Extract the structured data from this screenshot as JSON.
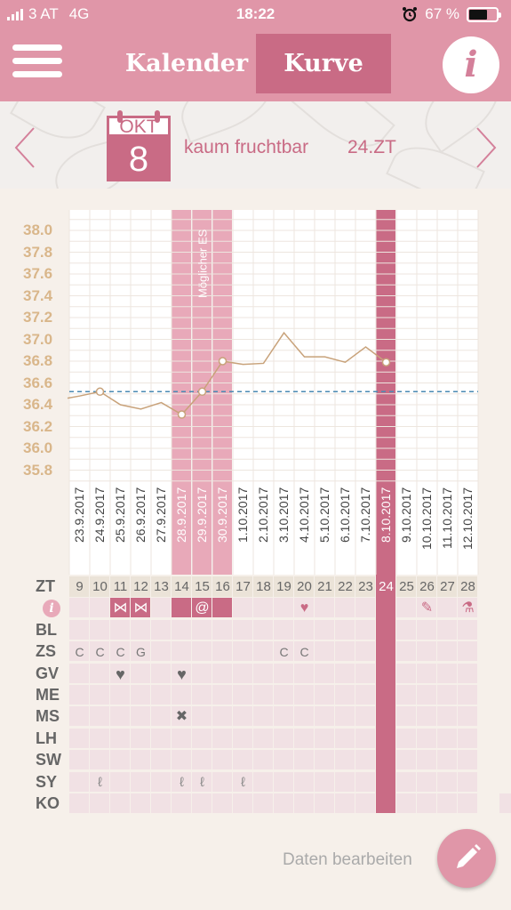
{
  "status": {
    "carrier": "3 AT",
    "network": "4G",
    "time": "18:22",
    "battery": "67 %",
    "battery_level": 0.67
  },
  "header": {
    "tabs": [
      {
        "label": "Kalender",
        "active": false
      },
      {
        "label": "Kurve",
        "active": true
      }
    ],
    "info_icon": "i"
  },
  "datebar": {
    "month": "OKT",
    "day": "8",
    "fertility": "kaum fruchtbar",
    "cycle_day": "24.ZT"
  },
  "chart_data": {
    "type": "line",
    "ylim": [
      35.7,
      38.1
    ],
    "y_ticks": [
      "38.0",
      "37.8",
      "37.6",
      "37.4",
      "37.2",
      "37.0",
      "36.8",
      "36.6",
      "36.4",
      "36.2",
      "36.0",
      "35.8"
    ],
    "coverline": 36.52,
    "annotation": "Möglicher ES",
    "x": [
      "23.9.2017",
      "24.9.2017",
      "25.9.2017",
      "26.9.2017",
      "27.9.2017",
      "28.9.2017",
      "29.9.2017",
      "30.9.2017",
      "1.10.2017",
      "2.10.2017",
      "3.10.2017",
      "4.10.2017",
      "5.10.2017",
      "6.10.2017",
      "7.10.2017",
      "8.10.2017",
      "9.10.2017",
      "10.10.2017",
      "11.10.2017",
      "12.10.2017"
    ],
    "series": [
      {
        "values": [
          36.48,
          36.52,
          36.4,
          36.36,
          36.42,
          36.31,
          36.52,
          36.8,
          36.77,
          36.78,
          37.06,
          36.84,
          36.84,
          36.79,
          36.93,
          36.79,
          null,
          null,
          null,
          null
        ]
      }
    ]
  },
  "grid": {
    "row_labels": [
      "ZT",
      "i",
      "BL",
      "ZS",
      "GV",
      "ME",
      "MS",
      "LH",
      "SW",
      "SY",
      "KO"
    ],
    "cycle_days": [
      "9",
      "10",
      "11",
      "12",
      "13",
      "14",
      "15",
      "16",
      "17",
      "18",
      "19",
      "20",
      "21",
      "22",
      "23",
      "24",
      "25",
      "26",
      "27",
      "28"
    ],
    "zs_marks": [
      "C",
      "C",
      "C",
      "G",
      "",
      "",
      "",
      "",
      "",
      "",
      "C",
      "C",
      "",
      "",
      "",
      "",
      "",
      "",
      "",
      ""
    ],
    "icons": {
      "i": [
        "",
        "",
        "bow-icon",
        "bow-icon",
        "",
        "filled",
        "swirl-icon",
        "filled",
        "",
        "",
        "",
        "bird-icon",
        "",
        "",
        "",
        "",
        "",
        "syringe-icon",
        "",
        "flask-icon"
      ],
      "gv": [
        "",
        "",
        "heart-icon",
        "",
        "",
        "heart-icon",
        "",
        "",
        "",
        "",
        "",
        "",
        "",
        "",
        "",
        "",
        "",
        "",
        "",
        ""
      ],
      "ms": [
        "",
        "",
        "",
        "",
        "",
        "bandage-icon",
        "",
        "",
        "",
        "",
        "",
        "",
        "",
        "",
        "",
        "",
        "",
        "",
        "",
        ""
      ],
      "sy": [
        "",
        "stethoscope-icon",
        "",
        "",
        "",
        "stethoscope-icon",
        "stethoscope-icon",
        "",
        "stethoscope-icon",
        "",
        "",
        "",
        "",
        "",
        "",
        "",
        "",
        "",
        "",
        ""
      ]
    }
  },
  "footer": {
    "edit_label": "Daten bearbeiten",
    "edit_icon": "pencil-icon"
  }
}
